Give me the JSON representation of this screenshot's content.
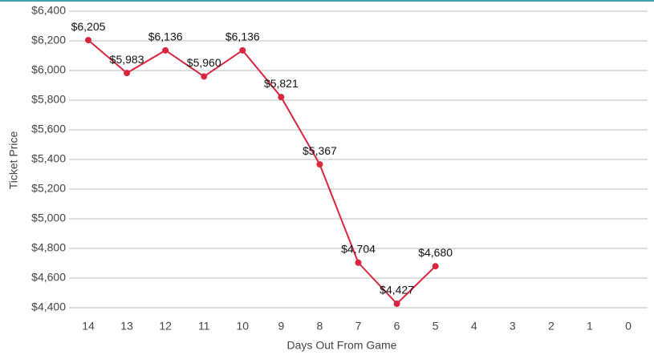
{
  "chart_data": {
    "type": "line",
    "x_label": "Days Out From Game",
    "y_label": "Ticket Price",
    "categories": [
      "14",
      "13",
      "12",
      "11",
      "10",
      "9",
      "8",
      "7",
      "6",
      "5",
      "4",
      "3",
      "2",
      "1",
      "0"
    ],
    "series": [
      {
        "name": "Ticket Price",
        "color": "#d7263d",
        "values": [
          6205,
          5983,
          6136,
          5960,
          6136,
          5821,
          5367,
          4704,
          4427,
          4680,
          null,
          null,
          null,
          null,
          null
        ],
        "value_labels": [
          "$6,205",
          "$5,983",
          "$6,136",
          "$5,960",
          "$6,136",
          "$5,821",
          "$5,367",
          "$4,704",
          "$4,427",
          "$4,680",
          null,
          null,
          null,
          null,
          null
        ]
      }
    ],
    "ylim": [
      4400,
      6400
    ],
    "yticks": [
      {
        "value": 4400,
        "label": "$4,400"
      },
      {
        "value": 4600,
        "label": "$4,600"
      },
      {
        "value": 4800,
        "label": "$4,800"
      },
      {
        "value": 5000,
        "label": "$5,000"
      },
      {
        "value": 5200,
        "label": "$5,200"
      },
      {
        "value": 5400,
        "label": "$5,400"
      },
      {
        "value": 5600,
        "label": "$5,600"
      },
      {
        "value": 5800,
        "label": "$5,800"
      },
      {
        "value": 6000,
        "label": "$6,000"
      },
      {
        "value": 6200,
        "label": "$6,200"
      },
      {
        "value": 6400,
        "label": "$6,400"
      }
    ],
    "grid": true
  }
}
